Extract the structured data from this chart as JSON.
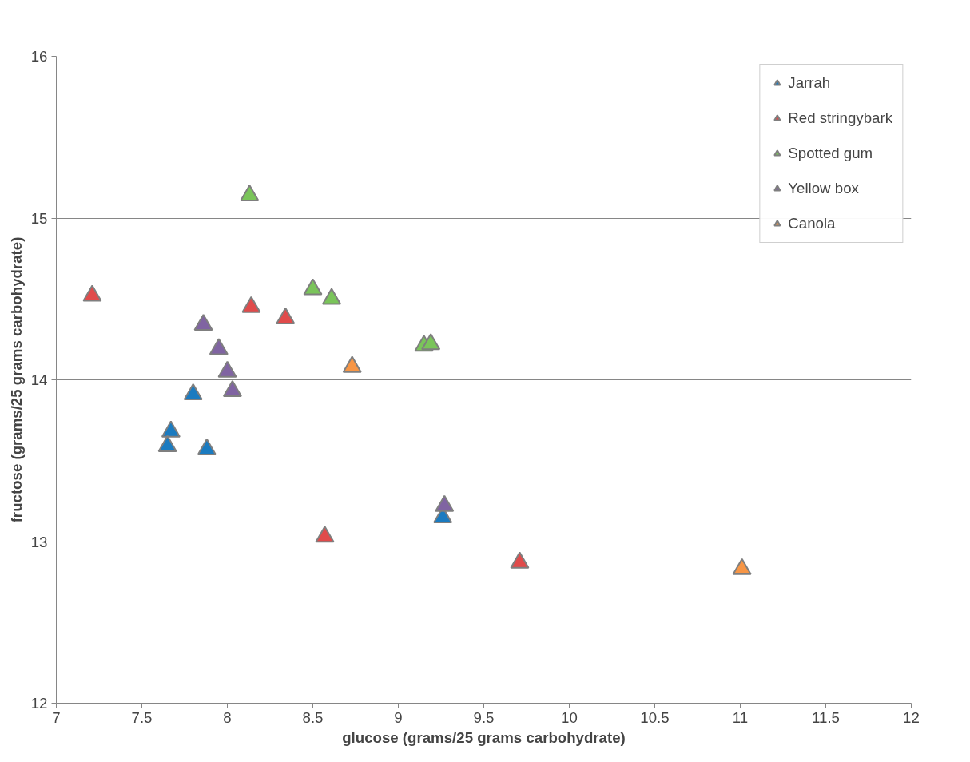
{
  "chart_data": {
    "type": "scatter",
    "xlabel": "glucose (grams/25 grams carbohydrate)",
    "ylabel": "fructose (grams/25 grams carbohydrate)",
    "xlim": [
      7,
      12
    ],
    "xticks": [
      7,
      7.5,
      8,
      8.5,
      9,
      9.5,
      10,
      10.5,
      11,
      11.5,
      12
    ],
    "ylim": [
      12,
      16
    ],
    "yticks": [
      12,
      13,
      14,
      15,
      16
    ],
    "grid": "y",
    "legend": "top right",
    "marker": "triangle",
    "series": [
      {
        "name": "Jarrah",
        "color": "#1b7bc0",
        "x": [
          7.8,
          7.67,
          7.65,
          7.88,
          9.26
        ],
        "values": [
          13.91,
          13.68,
          13.59,
          13.57,
          13.15
        ]
      },
      {
        "name": "Red stringybark",
        "color": "#e04b4b",
        "x": [
          7.21,
          8.14,
          8.34,
          8.57,
          9.71
        ],
        "values": [
          14.52,
          14.45,
          14.38,
          13.03,
          12.87
        ]
      },
      {
        "name": "Spotted gum",
        "color": "#7ac45a",
        "x": [
          8.13,
          8.5,
          8.61,
          9.15,
          9.19
        ],
        "values": [
          15.14,
          14.56,
          14.5,
          14.21,
          14.22
        ]
      },
      {
        "name": "Yellow box",
        "color": "#8064a2",
        "x": [
          7.86,
          7.95,
          8.0,
          8.03,
          9.27
        ],
        "values": [
          14.34,
          14.19,
          14.05,
          13.93,
          13.22
        ]
      },
      {
        "name": "Canola",
        "color": "#f79646",
        "x": [
          8.73,
          11.01
        ],
        "values": [
          14.08,
          12.83
        ]
      }
    ]
  }
}
